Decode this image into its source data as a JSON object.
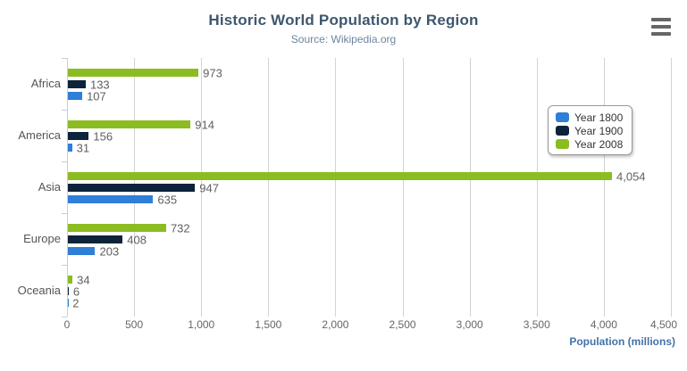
{
  "title": "Historic World Population by Region",
  "subtitle": "Source: Wikipedia.org",
  "icons": {
    "hamburger-icon": "≡"
  },
  "colors": {
    "title": "#3E576F",
    "subtitle": "#6D869F",
    "axis_title": "#4572A7",
    "axis_line": "#C0D0E0",
    "gridline": "#d3d3d3",
    "data_label": "#606060"
  },
  "chart_data": {
    "type": "bar",
    "orientation": "horizontal",
    "title": "Historic World Population by Region",
    "subtitle": "Source: Wikipedia.org",
    "categories": [
      "Africa",
      "America",
      "Asia",
      "Europe",
      "Oceania"
    ],
    "series": [
      {
        "name": "Year 1800",
        "color": "#2f7ed8",
        "values": [
          107,
          31,
          635,
          203,
          2
        ]
      },
      {
        "name": "Year 1900",
        "color": "#0d233a",
        "values": [
          133,
          156,
          947,
          408,
          6
        ]
      },
      {
        "name": "Year 2008",
        "color": "#8bbc21",
        "values": [
          973,
          914,
          4054,
          732,
          34
        ]
      }
    ],
    "row_order_top_to_bottom": [
      "Year 2008",
      "Year 1900",
      "Year 1800"
    ],
    "xlabel": "Population (millions)",
    "xlim": [
      0,
      4500
    ],
    "tick_interval": 500,
    "x_ticks": [
      "0",
      "500",
      "1,000",
      "1,500",
      "2,000",
      "2,500",
      "3,000",
      "3,500",
      "4,000",
      "4,500"
    ],
    "grid": true,
    "data_labels": true,
    "legend_position": "right"
  }
}
